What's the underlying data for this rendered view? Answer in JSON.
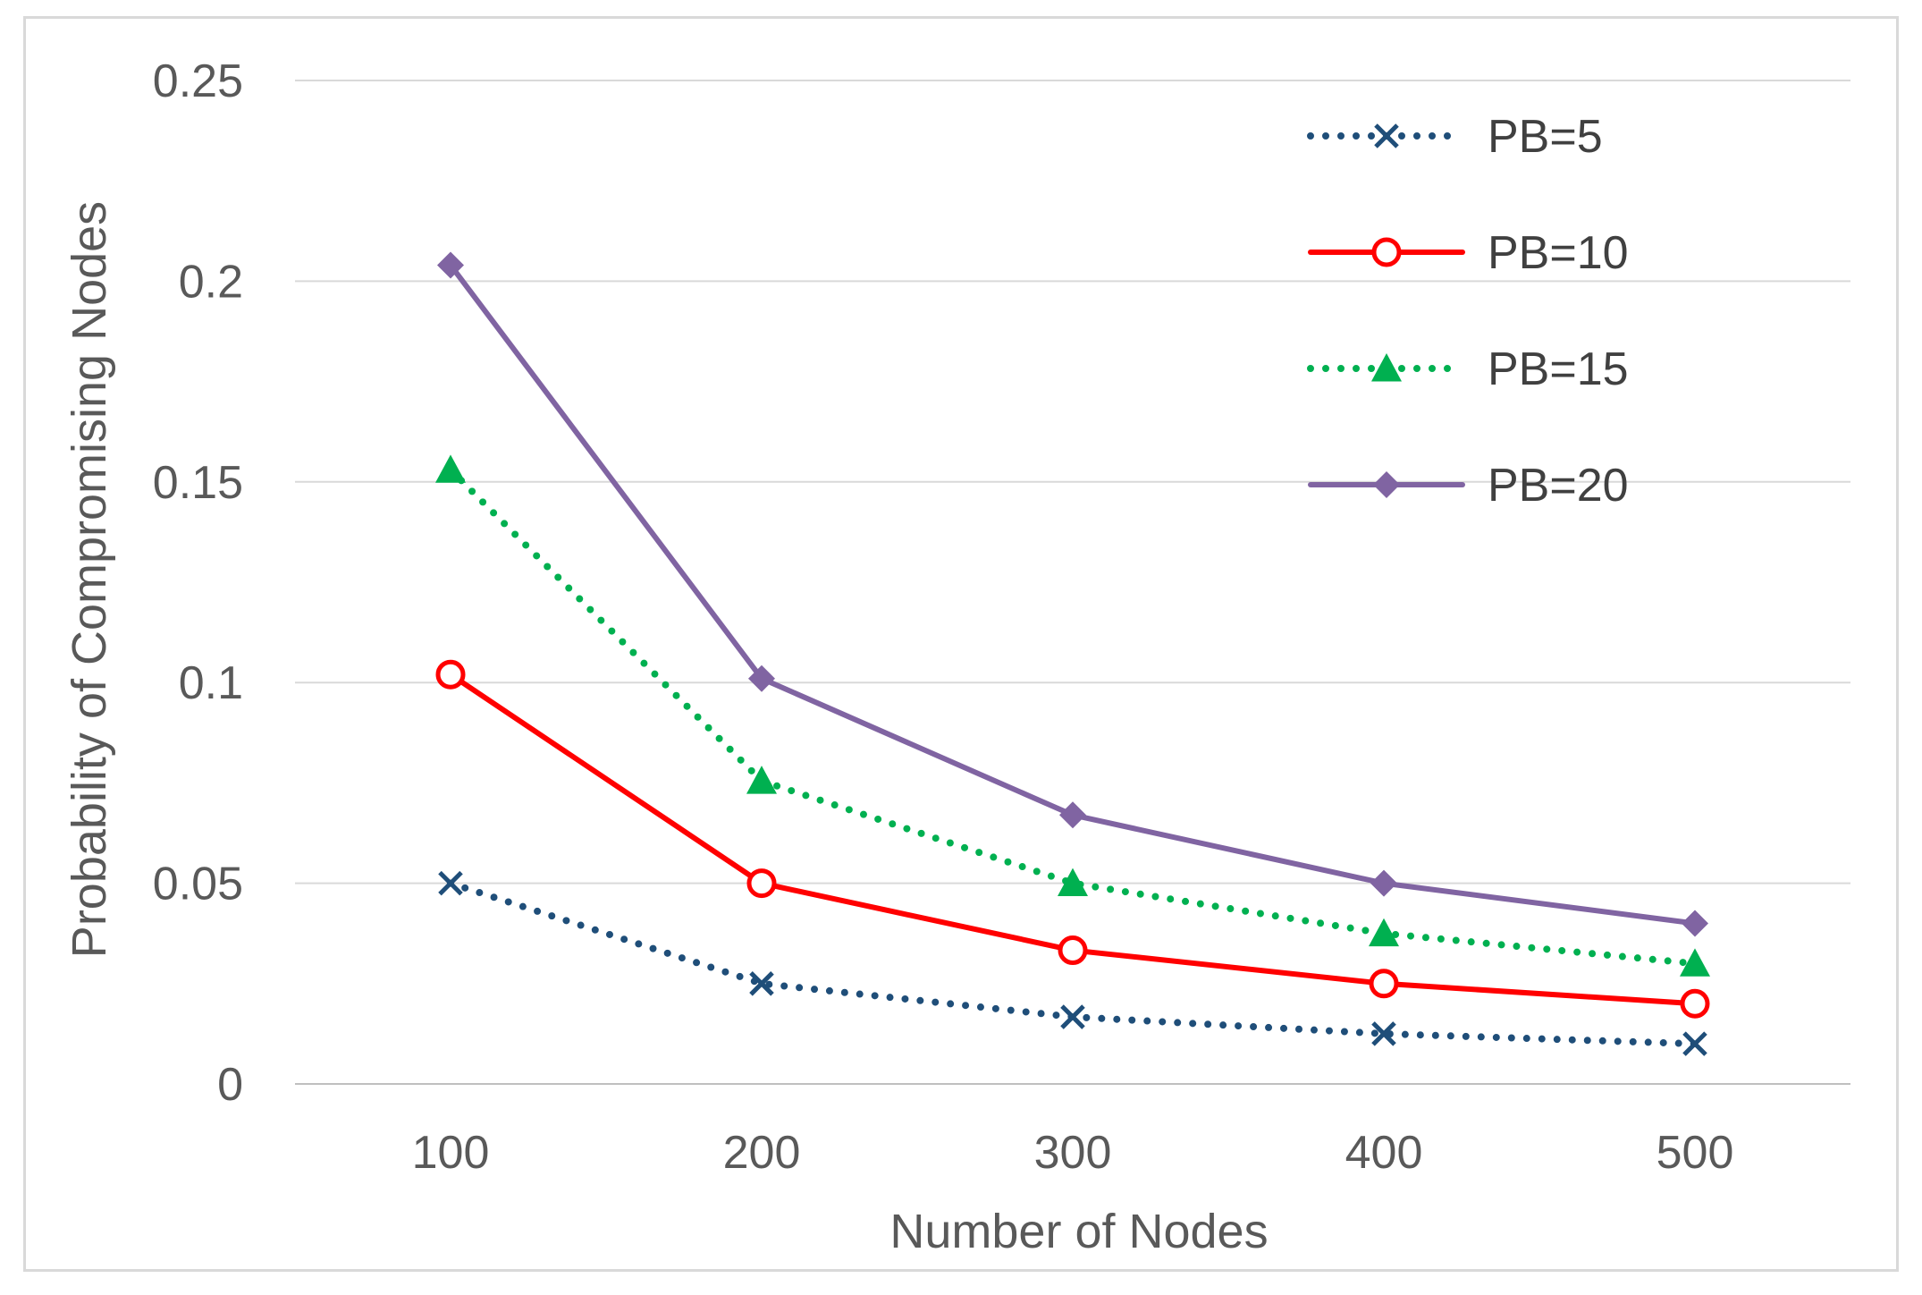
{
  "chart_data": {
    "type": "line",
    "title": "",
    "xlabel": "Number of Nodes",
    "ylabel": "Probability of Compromising Nodes",
    "categories": [
      "100",
      "200",
      "300",
      "400",
      "500"
    ],
    "ylim": [
      0,
      0.25
    ],
    "yticks": [
      "0",
      "0.05",
      "0.1",
      "0.15",
      "0.2",
      "0.25"
    ],
    "ytick_values": [
      0,
      0.05,
      0.1,
      0.15,
      0.2,
      0.25
    ],
    "grid": true,
    "legend_position": "top-right",
    "series": [
      {
        "name": "PB=5",
        "values": [
          0.05,
          0.025,
          0.0167,
          0.0125,
          0.01
        ],
        "color": "#1f4e79",
        "style": "dotted",
        "marker": "x"
      },
      {
        "name": "PB=10",
        "values": [
          0.102,
          0.05,
          0.0333,
          0.025,
          0.02
        ],
        "color": "#ff0000",
        "style": "solid",
        "marker": "open-circle"
      },
      {
        "name": "PB=15",
        "values": [
          0.153,
          0.0755,
          0.05,
          0.0375,
          0.03
        ],
        "color": "#00b050",
        "style": "dotted",
        "marker": "triangle"
      },
      {
        "name": "PB=20",
        "values": [
          0.204,
          0.101,
          0.067,
          0.05,
          0.04
        ],
        "color": "#8064a2",
        "style": "solid",
        "marker": "diamond"
      }
    ]
  }
}
